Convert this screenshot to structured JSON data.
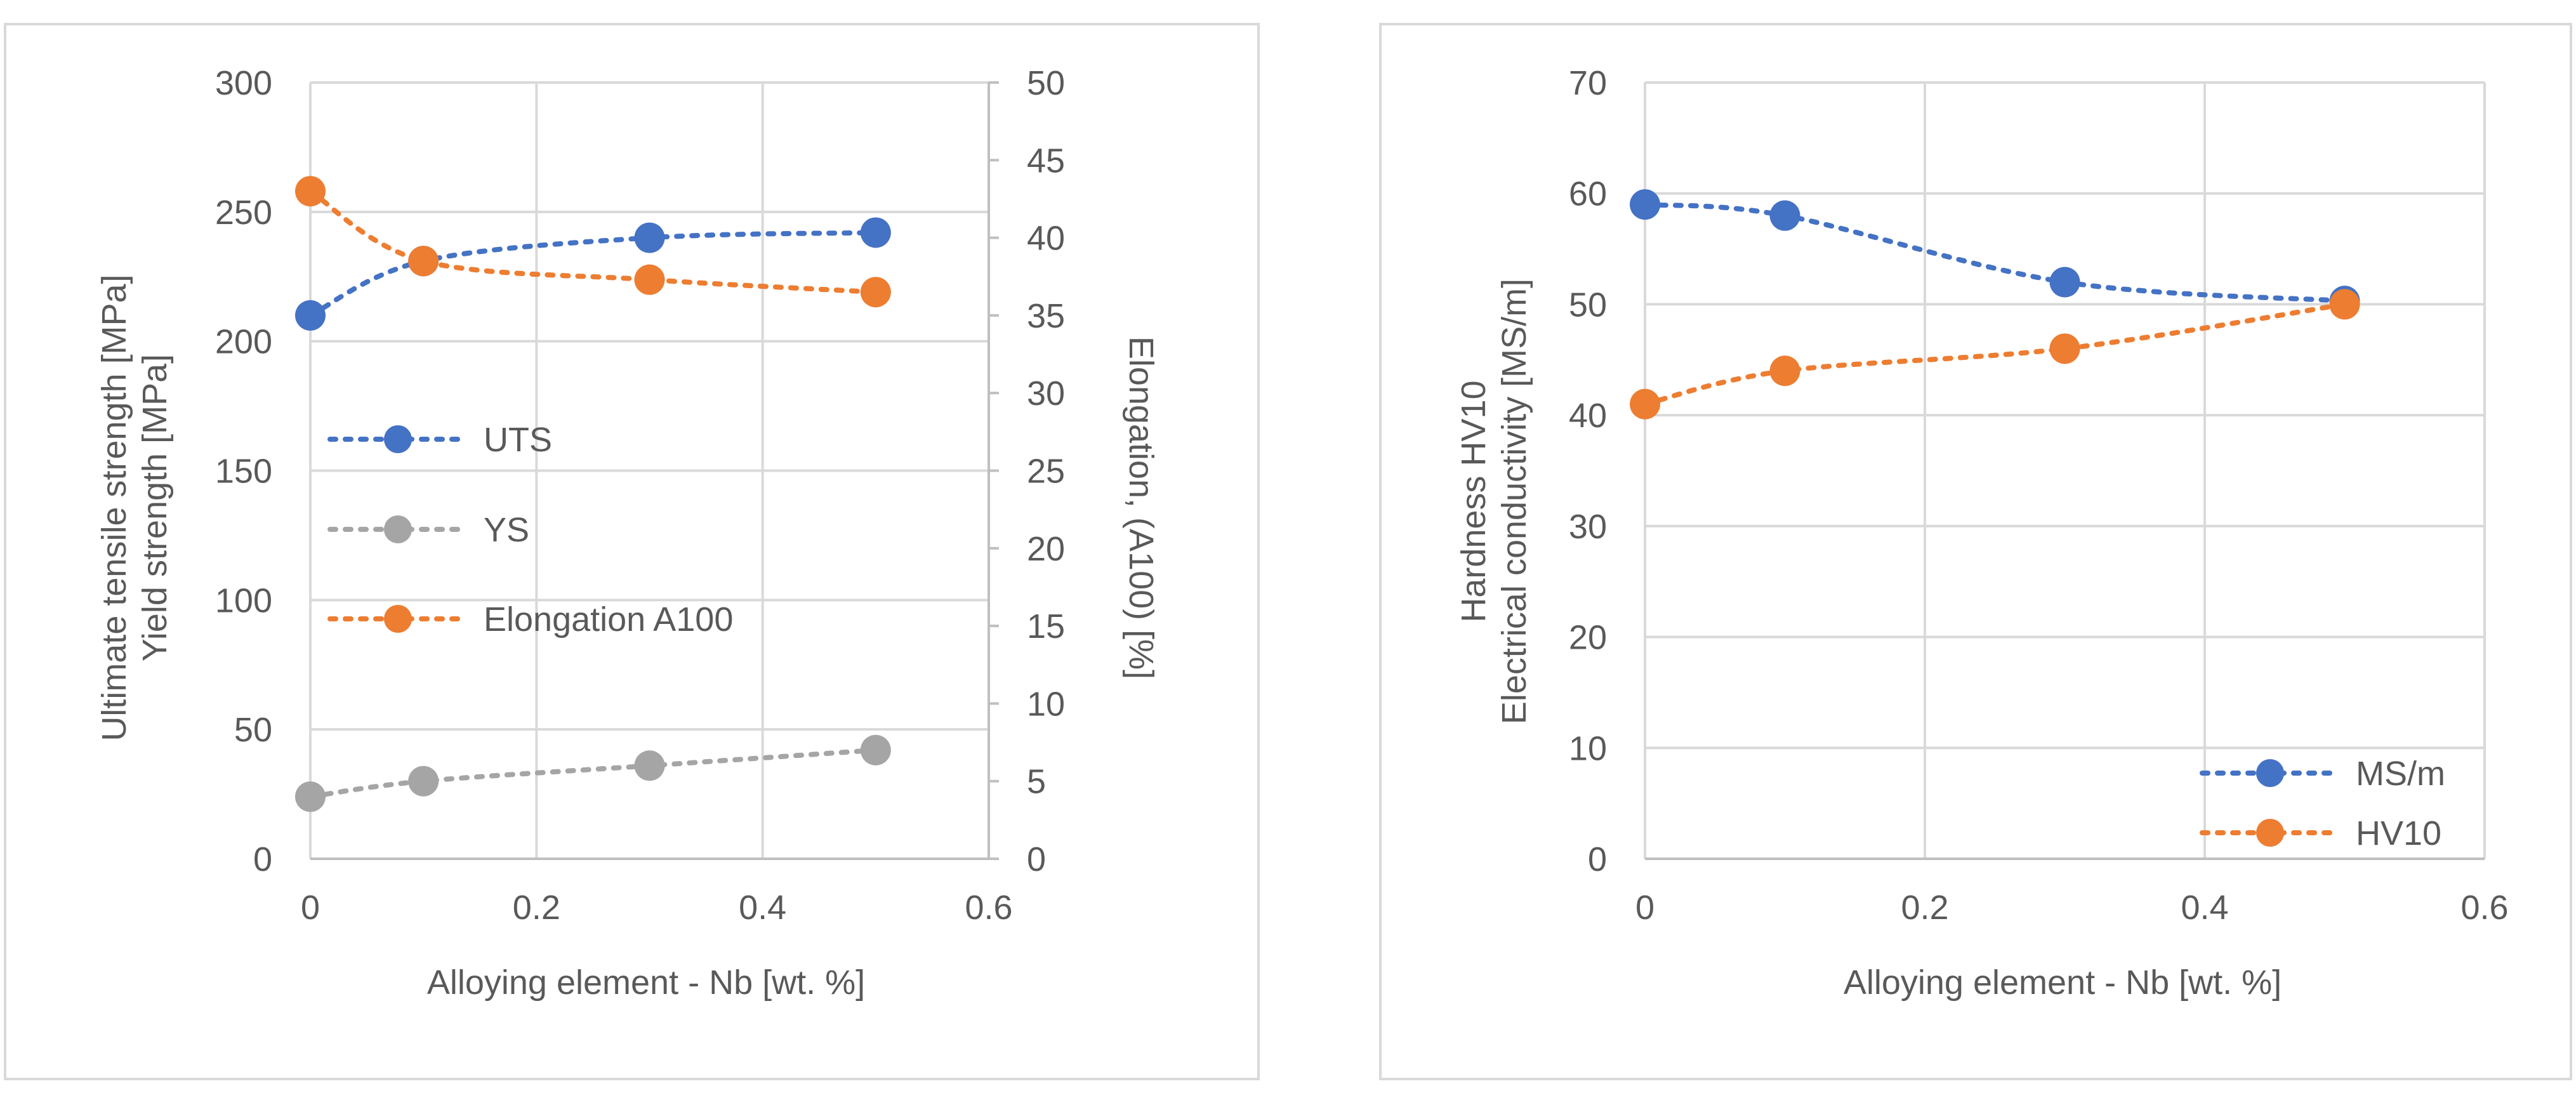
{
  "chart_data": [
    {
      "type": "line",
      "smooth": true,
      "x_label": "Alloying element - Nb [wt. %]",
      "x_ticks": [
        "0",
        "0.2",
        "0.4",
        "0.6"
      ],
      "xlim": [
        0,
        0.6
      ],
      "y_label_lines": [
        "Ultimate tensile strength [MPa]",
        "Yield strength [MPa]"
      ],
      "y_ticks": [
        "0",
        "50",
        "100",
        "150",
        "200",
        "250",
        "300"
      ],
      "ylim": [
        0,
        300
      ],
      "y2_label": "Elongation, (A100) [%]",
      "y2_ticks": [
        "0",
        "5",
        "10",
        "15",
        "20",
        "25",
        "30",
        "35",
        "40",
        "45",
        "50"
      ],
      "y2lim": [
        0,
        50
      ],
      "grid": true,
      "legend_position": "left-middle",
      "series": [
        {
          "name": "UTS",
          "axis": "left",
          "color": "#4472c4",
          "x": [
            0,
            0.1,
            0.3,
            0.5
          ],
          "y": [
            210,
            231,
            240,
            242
          ]
        },
        {
          "name": "YS",
          "axis": "left",
          "color": "#a5a5a5",
          "x": [
            0,
            0.1,
            0.3,
            0.5
          ],
          "y": [
            24,
            30,
            36,
            42
          ]
        },
        {
          "name": "Elongation A100",
          "axis": "right",
          "color": "#ed7d31",
          "x": [
            0,
            0.1,
            0.3,
            0.5
          ],
          "y": [
            43,
            38.5,
            37.3,
            36.5
          ]
        }
      ]
    },
    {
      "type": "line",
      "smooth": true,
      "x_label": "Alloying element - Nb [wt. %]",
      "x_ticks": [
        "0",
        "0.2",
        "0.4",
        "0.6"
      ],
      "xlim": [
        0,
        0.6
      ],
      "y_label_lines": [
        "Hardness HV10",
        "Electrical conductivity [MS/m]"
      ],
      "y_ticks": [
        "0",
        "10",
        "20",
        "30",
        "40",
        "50",
        "60",
        "70"
      ],
      "ylim": [
        0,
        70
      ],
      "grid": true,
      "legend_position": "bottom-right",
      "series": [
        {
          "name": "MS/m",
          "axis": "left",
          "color": "#4472c4",
          "x": [
            0,
            0.1,
            0.3,
            0.5
          ],
          "y": [
            59,
            58,
            52,
            50.3
          ]
        },
        {
          "name": "HV10",
          "axis": "left",
          "color": "#ed7d31",
          "x": [
            0,
            0.1,
            0.3,
            0.5
          ],
          "y": [
            41,
            44,
            46,
            50
          ]
        }
      ]
    }
  ]
}
